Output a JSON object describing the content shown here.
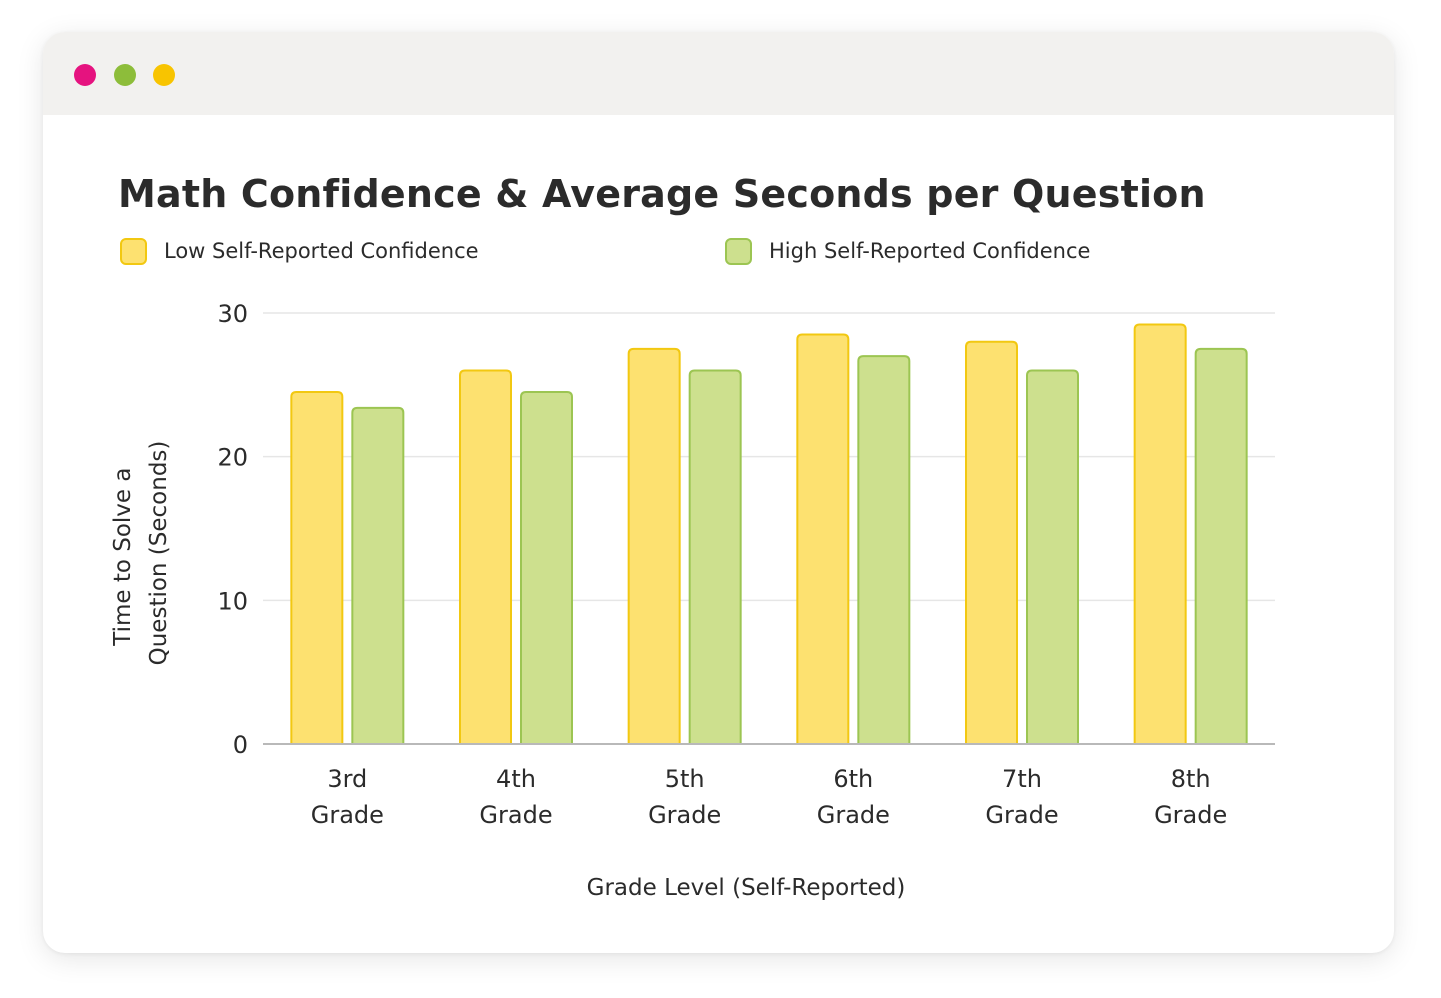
{
  "window": {
    "controls": [
      {
        "name": "close",
        "color": "#e5137f"
      },
      {
        "name": "minimize",
        "color": "#8dbd3a"
      },
      {
        "name": "maximize",
        "color": "#f8c400"
      }
    ]
  },
  "chart_data": {
    "type": "bar",
    "title": "Math Confidence & Average Seconds per Question",
    "categories": [
      [
        "3rd",
        "Grade"
      ],
      [
        "4th",
        "Grade"
      ],
      [
        "5th",
        "Grade"
      ],
      [
        "6th",
        "Grade"
      ],
      [
        "7th",
        "Grade"
      ],
      [
        "8th",
        "Grade"
      ]
    ],
    "series": [
      {
        "name": "Low Self-Reported Confidence",
        "values": [
          24.5,
          26,
          27.5,
          28.5,
          28,
          29.2
        ],
        "fill": "#fde170",
        "stroke": "#f2c811"
      },
      {
        "name": "High Self-Reported Confidence",
        "values": [
          23.4,
          24.5,
          26,
          27,
          26,
          27.5
        ],
        "fill": "#cde08e",
        "stroke": "#9cc552"
      }
    ],
    "xlabel": "Grade Level (Self-Reported)",
    "ylabel": [
      "Time to Solve a",
      "Question (Seconds)"
    ],
    "ylim": [
      0,
      30
    ],
    "yticks": [
      0,
      10,
      20,
      30
    ],
    "grid": true,
    "legend_position": "top"
  }
}
